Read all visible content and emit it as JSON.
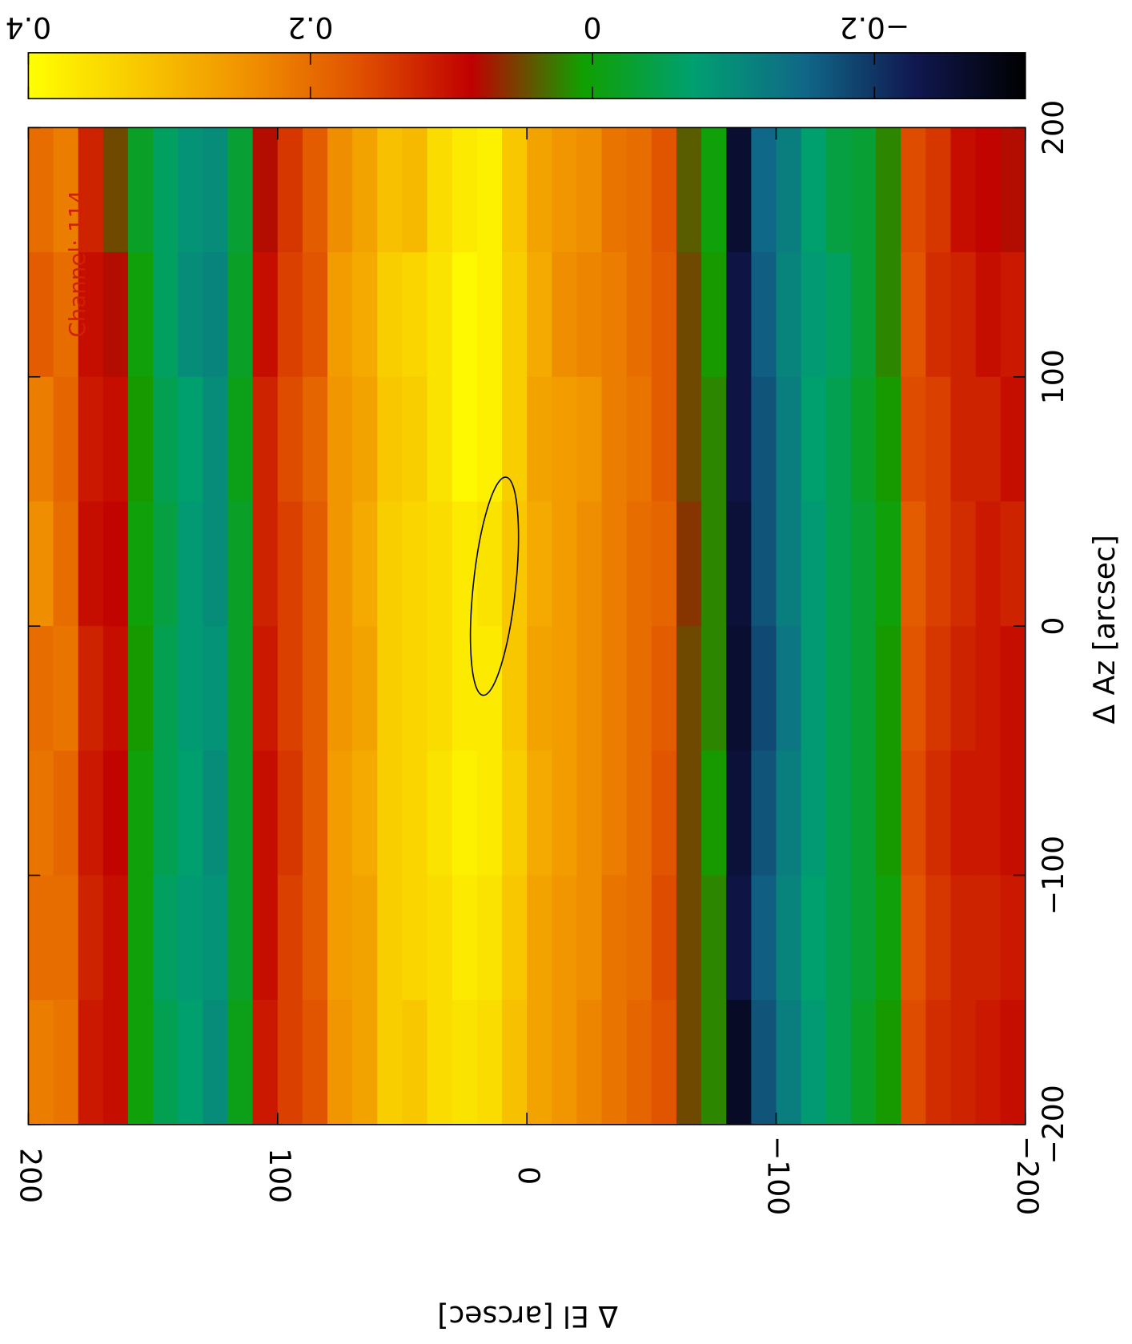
{
  "chart_data": {
    "type": "heatmap",
    "xlabel": "Δ El [arcsec]",
    "ylabel": "Δ Az [arcsec]",
    "annotation": "Channel: 114",
    "xlim": [
      200,
      -200
    ],
    "ylim": [
      -200,
      200
    ],
    "xticks": [
      200,
      100,
      0,
      {
        "value": -100,
        "label": "−100"
      },
      {
        "value": -200,
        "label": "−200"
      }
    ],
    "yticks": [
      {
        "value": -200,
        "label": "−200"
      },
      {
        "value": -100,
        "label": "−100"
      },
      0,
      100,
      200
    ],
    "clim": [
      0.4,
      -0.307
    ],
    "cticks": [
      0.4,
      0.2,
      0,
      {
        "value": -0.2,
        "label": "−0.2"
      }
    ],
    "colormap": [
      "#ffff00",
      "#f8c800",
      "#f09000",
      "#e05000",
      "#c00000",
      "#10a000",
      "#00a070",
      "#106888",
      "#101850",
      "#000000"
    ],
    "x": [
      195,
      185,
      175,
      165,
      155,
      145,
      135,
      125,
      115,
      105,
      95,
      85,
      75,
      65,
      55,
      45,
      35,
      25,
      15,
      5,
      -5,
      -15,
      -25,
      -35,
      -45,
      -55,
      -65,
      -75,
      -85,
      -95,
      -105,
      -115,
      -125,
      -135,
      -145,
      -155,
      -165,
      -175,
      -185,
      -195
    ],
    "y": [
      175,
      125,
      75,
      25,
      -25,
      -75,
      -125,
      -175
    ],
    "values": [
      [
        0.2,
        0.22,
        0.12,
        0.05,
        -0.02,
        -0.06,
        -0.09,
        -0.1,
        -0.03,
        0.08,
        0.14,
        0.18,
        0.24,
        0.27,
        0.31,
        0.3,
        0.35,
        0.37,
        0.38,
        0.32,
        0.27,
        0.25,
        0.24,
        0.21,
        0.2,
        0.17,
        0.04,
        0.0,
        -0.26,
        -0.15,
        -0.12,
        -0.07,
        -0.04,
        -0.03,
        0.02,
        0.16,
        0.14,
        0.1,
        0.09,
        0.08
      ],
      [
        0.18,
        0.2,
        0.1,
        0.08,
        0.0,
        -0.06,
        -0.1,
        -0.11,
        -0.02,
        0.1,
        0.15,
        0.17,
        0.26,
        0.28,
        0.33,
        0.34,
        0.36,
        0.39,
        0.38,
        0.33,
        0.28,
        0.24,
        0.23,
        0.22,
        0.2,
        0.18,
        0.05,
        0.01,
        -0.24,
        -0.16,
        -0.11,
        -0.08,
        -0.06,
        -0.03,
        0.02,
        0.17,
        0.13,
        0.12,
        0.1,
        0.11
      ],
      [
        0.22,
        0.19,
        0.11,
        0.1,
        0.01,
        -0.05,
        -0.07,
        -0.1,
        -0.01,
        0.12,
        0.16,
        0.19,
        0.25,
        0.27,
        0.32,
        0.33,
        0.36,
        0.39,
        0.38,
        0.33,
        0.27,
        0.26,
        0.25,
        0.22,
        0.21,
        0.18,
        0.05,
        0.02,
        -0.24,
        -0.17,
        -0.12,
        -0.07,
        -0.05,
        -0.02,
        0.01,
        0.16,
        0.15,
        0.12,
        0.12,
        0.1
      ],
      [
        0.24,
        0.2,
        0.1,
        0.09,
        0.0,
        -0.04,
        -0.08,
        -0.1,
        -0.02,
        0.12,
        0.15,
        0.18,
        0.25,
        0.28,
        0.33,
        0.34,
        0.35,
        0.37,
        0.36,
        0.32,
        0.28,
        0.26,
        0.24,
        0.22,
        0.2,
        0.19,
        0.06,
        0.02,
        -0.25,
        -0.17,
        -0.12,
        -0.08,
        -0.05,
        -0.03,
        0.0,
        0.18,
        0.15,
        0.13,
        0.11,
        0.12
      ],
      [
        0.2,
        0.21,
        0.12,
        0.1,
        0.01,
        -0.05,
        -0.08,
        -0.09,
        -0.02,
        0.11,
        0.15,
        0.18,
        0.25,
        0.27,
        0.33,
        0.34,
        0.35,
        0.37,
        0.37,
        0.32,
        0.27,
        0.26,
        0.24,
        0.22,
        0.2,
        0.18,
        0.05,
        0.02,
        -0.26,
        -0.18,
        -0.13,
        -0.08,
        -0.05,
        -0.03,
        0.01,
        0.17,
        0.14,
        0.12,
        0.11,
        0.1
      ],
      [
        0.21,
        0.19,
        0.11,
        0.09,
        0.0,
        -0.05,
        -0.07,
        -0.1,
        -0.02,
        0.1,
        0.14,
        0.18,
        0.26,
        0.28,
        0.33,
        0.34,
        0.36,
        0.38,
        0.37,
        0.33,
        0.28,
        0.26,
        0.24,
        0.22,
        0.2,
        0.17,
        0.05,
        0.01,
        -0.25,
        -0.17,
        -0.12,
        -0.08,
        -0.05,
        -0.03,
        0.01,
        0.16,
        0.13,
        0.11,
        0.11,
        0.1
      ],
      [
        0.2,
        0.2,
        0.12,
        0.1,
        0.0,
        -0.06,
        -0.08,
        -0.09,
        -0.02,
        0.1,
        0.15,
        0.18,
        0.26,
        0.27,
        0.33,
        0.34,
        0.35,
        0.37,
        0.36,
        0.32,
        0.27,
        0.25,
        0.24,
        0.21,
        0.2,
        0.16,
        0.05,
        0.02,
        -0.24,
        -0.16,
        -0.11,
        -0.07,
        -0.05,
        -0.03,
        0.0,
        0.17,
        0.14,
        0.12,
        0.12,
        0.11
      ],
      [
        0.22,
        0.21,
        0.11,
        0.1,
        0.0,
        -0.05,
        -0.07,
        -0.1,
        -0.01,
        0.11,
        0.15,
        0.17,
        0.25,
        0.27,
        0.33,
        0.32,
        0.35,
        0.36,
        0.35,
        0.31,
        0.27,
        0.25,
        0.23,
        0.21,
        0.19,
        0.17,
        0.05,
        0.02,
        -0.27,
        -0.17,
        -0.12,
        -0.08,
        -0.05,
        -0.02,
        0.01,
        0.16,
        0.13,
        0.12,
        0.11,
        0.1
      ]
    ],
    "beam": {
      "el": 13,
      "az": 16,
      "semi_major": 44,
      "semi_minor": 8.5,
      "angle": 6
    }
  }
}
